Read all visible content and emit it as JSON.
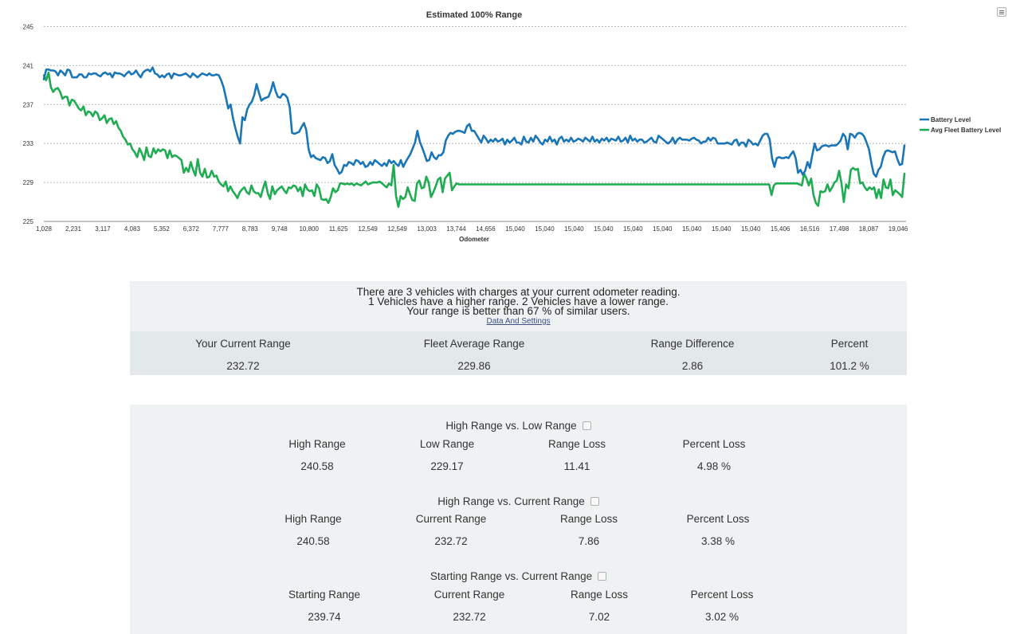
{
  "chart_data": {
    "type": "line",
    "title": "Estimated 100% Range",
    "xlabel": "Odometer",
    "ylabel": "",
    "ylim": [
      225,
      245
    ],
    "yticks": [
      225,
      229,
      233,
      237,
      241,
      245
    ],
    "grid": true,
    "legend_position": "right",
    "x_tick_labels": [
      "1,028",
      "2,231",
      "3,117",
      "4,083",
      "5,352",
      "6,372",
      "7,777",
      "8,783",
      "9,748",
      "10,800",
      "11,625",
      "12,549",
      "12,549",
      "13,003",
      "13,744",
      "14,656",
      "15,040",
      "15,040",
      "15,040",
      "15,040",
      "15,040",
      "15,040",
      "15,040",
      "15,040",
      "15,040",
      "15,406",
      "16,516",
      "17,498",
      "18,087",
      "19,046"
    ],
    "series": [
      {
        "name": "Battery Level",
        "color": "#1a76b6",
        "values": [
          239.6,
          240.6,
          240.6,
          240.5,
          240.5,
          240.4,
          240.0,
          240.5,
          240.3,
          240.0,
          240.6,
          240.5,
          239.8,
          239.8,
          239.8,
          240.1,
          240.1,
          239.8,
          239.8,
          240.2,
          240.1,
          240.2,
          240.2,
          240.0,
          239.9,
          240.2,
          240.3,
          240.1,
          240.2,
          239.8,
          240.3,
          240.2,
          240.2,
          240.1,
          239.9,
          240.2,
          240.4,
          240.1,
          240.2,
          240.5,
          240.1,
          239.8,
          240.3,
          240.5,
          240.6,
          240.4,
          240.8,
          240.2,
          240.1,
          239.8,
          240.0,
          239.8,
          240.1,
          240.2,
          239.7,
          240.2,
          240.1,
          240.0,
          240.0,
          240.1,
          240.2,
          240.0,
          239.8,
          240.2,
          240.0,
          239.8,
          240.0,
          240.2,
          240.1,
          240.0,
          240.2,
          240.0,
          240.0,
          240.1,
          240.0,
          239.5,
          238.8,
          237.7,
          236.6,
          237.0,
          235.6,
          234.6,
          233.7,
          233.0,
          235.7,
          235.4,
          236.5,
          237.0,
          237.3,
          238.0,
          239.1,
          238.2,
          237.4,
          237.6,
          237.7,
          237.8,
          238.4,
          239.3,
          238.4,
          237.8,
          237.7,
          238.1,
          238.0,
          237.7,
          236.7,
          234.1,
          234.0,
          234.1,
          234.2,
          234.7,
          235.1,
          234.4,
          232.4,
          231.6,
          231.8,
          231.5,
          231.4,
          231.3,
          231.6,
          231.5,
          231.0,
          231.2,
          231.9,
          230.8,
          230.4,
          229.9,
          230.1,
          230.8,
          230.7,
          231.1,
          231.0,
          230.8,
          231.3,
          231.2,
          230.9,
          231.1,
          230.6,
          230.7,
          231.1,
          230.8,
          231.3,
          231.1,
          230.9,
          230.7,
          231.0,
          230.7,
          231.3,
          231.0,
          231.2,
          230.9,
          230.7,
          231.3,
          230.6,
          231.1,
          231.5,
          231.9,
          232.5,
          233.1,
          234.3,
          233.2,
          232.6,
          231.9,
          231.2,
          231.3,
          232.1,
          231.6,
          231.4,
          231.8,
          231.8,
          232.1,
          233.3,
          233.8,
          234.1,
          234.0,
          234.2,
          234.3,
          234.3,
          234.2,
          234.1,
          234.8,
          235.0,
          234.3,
          234.3,
          233.9,
          233.5,
          233.1,
          233.8,
          233.5,
          233.1,
          233.4,
          233.2,
          233.5,
          233.2,
          233.3,
          233.5,
          232.9,
          233.4,
          233.1,
          233.3,
          233.6,
          233.1,
          233.1,
          232.9,
          233.7,
          233.2,
          233.1,
          233.6,
          233.2,
          233.8,
          233.5,
          233.1,
          232.9,
          233.4,
          233.2,
          233.7,
          233.2,
          233.4,
          232.9,
          233.5,
          233.7,
          233.2,
          233.4,
          233.2,
          233.6,
          233.2,
          233.3,
          233.5,
          233.4,
          233.2,
          233.6,
          233.4,
          233.2,
          233.7,
          233.2,
          233.4,
          233.1,
          233.5,
          233.3,
          233.6,
          233.2,
          233.5,
          233.4,
          233.3,
          233.7,
          233.2,
          233.3,
          233.6,
          233.1,
          233.8,
          233.3,
          233.5,
          233.2,
          233.4,
          233.4,
          233.1,
          233.2,
          233.4,
          233.6,
          233.2,
          233.1,
          233.8,
          233.6,
          233.4,
          233.2,
          233.0,
          233.2,
          233.6,
          233.0,
          233.4,
          233.6,
          233.4,
          233.4,
          233.4,
          233.3,
          233.5,
          233.6,
          233.4,
          233.3,
          233.0,
          233.2,
          233.2,
          233.6,
          233.3,
          233.6,
          233.5,
          233.0,
          233.0,
          233.0,
          233.0,
          233.1,
          233.0,
          232.9,
          233.3,
          233.4,
          232.8,
          233.1,
          233.1,
          232.7,
          233.4,
          233.2,
          232.9,
          233.0,
          232.8,
          233.3,
          233.8,
          234.0,
          234.0,
          233.4,
          231.5,
          230.6,
          231.5,
          231.6,
          231.5,
          231.5,
          231.6,
          231.5,
          231.9,
          232.2,
          231.5,
          230.0,
          230.3,
          229.8,
          230.2,
          231.1,
          230.5,
          231.8,
          233.0,
          232.3,
          232.4,
          232.7,
          232.8,
          232.8,
          232.7,
          232.8,
          232.8,
          232.8,
          233.0,
          233.3,
          234.0,
          233.7,
          232.4,
          234.0,
          233.9,
          233.6,
          234.0,
          234.1,
          234.0,
          233.7,
          233.1,
          232.4,
          231.0,
          229.9,
          229.6,
          230.3,
          230.6,
          231.6,
          232.2,
          232.3,
          232.2,
          232.1,
          232.2,
          231.4,
          230.8,
          230.9,
          232.8
        ]
      },
      {
        "name": "Avg Fleet Battery Level",
        "color": "#1fac52",
        "values": [
          240.0,
          239.5,
          240.3,
          238.8,
          238.3,
          238.6,
          238.7,
          238.3,
          237.6,
          237.8,
          237.8,
          236.9,
          237.5,
          237.4,
          237.0,
          236.6,
          236.4,
          236.8,
          235.9,
          236.3,
          236.2,
          235.8,
          236.3,
          236.1,
          235.4,
          235.6,
          235.9,
          235.1,
          235.5,
          235.6,
          235.0,
          235.3,
          234.6,
          234.3,
          233.7,
          233.4,
          232.9,
          233.0,
          232.4,
          232.1,
          231.6,
          232.5,
          232.0,
          231.3,
          232.6,
          231.7,
          231.6,
          232.5,
          232.0,
          232.4,
          232.2,
          232.4,
          232.3,
          231.5,
          232.3,
          231.6,
          231.8,
          231.7,
          231.5,
          231.3,
          230.0,
          230.5,
          230.1,
          231.1,
          230.3,
          229.7,
          231.4,
          230.0,
          229.6,
          230.4,
          229.5,
          229.6,
          230.2,
          229.6,
          229.7,
          229.1,
          228.8,
          228.6,
          229.1,
          228.1,
          228.6,
          228.1,
          227.8,
          227.4,
          228.0,
          228.3,
          228.5,
          228.0,
          227.8,
          228.7,
          228.1,
          227.9,
          227.9,
          227.5,
          228.4,
          229.1,
          227.9,
          227.3,
          228.6,
          227.8,
          228.2,
          228.4,
          228.6,
          228.2,
          227.9,
          228.5,
          228.4,
          228.7,
          228.6,
          228.1,
          228.5,
          227.6,
          228.8,
          228.3,
          228.1,
          228.2,
          227.6,
          228.8,
          228.4,
          227.3,
          227.2,
          227.3,
          226.9,
          227.5,
          228.4,
          228.0,
          228.2,
          228.9,
          228.9,
          228.8,
          228.9,
          228.8,
          228.9,
          228.7,
          228.9,
          228.8,
          228.7,
          228.9,
          229.1,
          228.8,
          228.9,
          229.0,
          229.0,
          229.0,
          229.1,
          228.9,
          228.7,
          228.5,
          228.9,
          228.7,
          230.8,
          227.6,
          226.5,
          227.6,
          227.3,
          227.5,
          228.5,
          227.8,
          227.2,
          227.1,
          228.9,
          229.2,
          228.4,
          228.5,
          229.6,
          229.0,
          227.5,
          228.0,
          228.6,
          229.3,
          229.5,
          228.0,
          229.4,
          229.7,
          230.0,
          228.2,
          228.6,
          228.9,
          228.8,
          228.8,
          228.8,
          228.8,
          228.8,
          228.8,
          228.8,
          228.8,
          228.8,
          228.8,
          228.8,
          228.8,
          228.8,
          228.8,
          228.8,
          228.8,
          228.8,
          228.8,
          228.8,
          228.8,
          228.8,
          228.8,
          228.8,
          228.8,
          228.8,
          228.8,
          228.8,
          228.8,
          228.8,
          228.8,
          228.8,
          228.8,
          228.8,
          228.8,
          228.8,
          228.8,
          228.8,
          228.8,
          228.8,
          228.8,
          228.8,
          228.8,
          228.8,
          228.8,
          228.8,
          228.8,
          228.8,
          228.8,
          228.8,
          228.8,
          228.8,
          228.8,
          228.8,
          228.8,
          228.8,
          228.8,
          228.8,
          228.8,
          228.8,
          228.8,
          228.8,
          228.8,
          228.8,
          228.8,
          228.8,
          228.8,
          228.8,
          228.8,
          228.8,
          228.8,
          228.8,
          228.8,
          228.8,
          228.8,
          228.8,
          228.8,
          228.8,
          228.8,
          228.8,
          228.8,
          228.8,
          228.8,
          228.8,
          228.8,
          228.8,
          228.8,
          228.8,
          228.8,
          228.8,
          228.8,
          228.8,
          228.8,
          228.8,
          228.8,
          228.8,
          228.8,
          228.8,
          228.8,
          228.8,
          228.8,
          228.8,
          228.8,
          228.8,
          228.8,
          228.8,
          228.8,
          228.8,
          228.8,
          228.8,
          228.8,
          228.8,
          228.8,
          228.8,
          228.8,
          228.8,
          228.8,
          228.8,
          228.8,
          228.8,
          228.8,
          228.8,
          228.8,
          228.8,
          228.8,
          228.8,
          228.8,
          228.8,
          228.8,
          228.8,
          228.8,
          228.8,
          228.8,
          228.8,
          228.8,
          227.7,
          228.7,
          228.9,
          228.9,
          228.9,
          228.9,
          228.9,
          228.9,
          228.9,
          228.9,
          228.9,
          228.9,
          228.8,
          228.7,
          229.9,
          229.4,
          228.7,
          229.4,
          227.7,
          226.9,
          226.6,
          228.1,
          228.0,
          228.1,
          228.8,
          228.1,
          228.5,
          229.0,
          229.2,
          230.2,
          228.9,
          227.0,
          228.8,
          228.4,
          230.3,
          230.5,
          230.3,
          230.4,
          228.9,
          229.0,
          228.5,
          228.2,
          228.5,
          228.3,
          228.5,
          227.4,
          228.3,
          227.4,
          229.3,
          228.5,
          228.4,
          229.3,
          227.7,
          228.2,
          228.0,
          227.8,
          227.5,
          229.9
        ]
      }
    ]
  },
  "summary": {
    "line1": "There are 3 vehicles with charges at your current odometer reading.",
    "line2": "1 Vehicles have a higher range. 2 Vehicles have a lower range.",
    "line3": "Your range is better than 67 % of similar users.",
    "link_label": "Data And Settings",
    "stats": [
      {
        "label": "Your Current Range",
        "value": "232.72"
      },
      {
        "label": "Fleet Average Range",
        "value": "229.86"
      },
      {
        "label": "Range Difference",
        "value": "2.86"
      },
      {
        "label": "Percent",
        "value": "101.2 %"
      }
    ]
  },
  "comparisons": [
    {
      "title": "High Range vs. Low Range",
      "cols": [
        {
          "label": "High Range",
          "value": "240.58"
        },
        {
          "label": "Low Range",
          "value": "229.17"
        },
        {
          "label": "Range Loss",
          "value": "11.41"
        },
        {
          "label": "Percent Loss",
          "value": "4.98 %"
        }
      ]
    },
    {
      "title": "High Range vs. Current Range",
      "cols": [
        {
          "label": "High Range",
          "value": "240.58"
        },
        {
          "label": "Current Range",
          "value": "232.72"
        },
        {
          "label": "Range Loss",
          "value": "7.86"
        },
        {
          "label": "Percent Loss",
          "value": "3.38 %"
        }
      ]
    },
    {
      "title": "Starting Range vs. Current Range",
      "cols": [
        {
          "label": "Starting Range",
          "value": "239.74"
        },
        {
          "label": "Current Range",
          "value": "232.72"
        },
        {
          "label": "Range Loss",
          "value": "7.02"
        },
        {
          "label": "Percent Loss",
          "value": "3.02 %"
        }
      ]
    }
  ]
}
